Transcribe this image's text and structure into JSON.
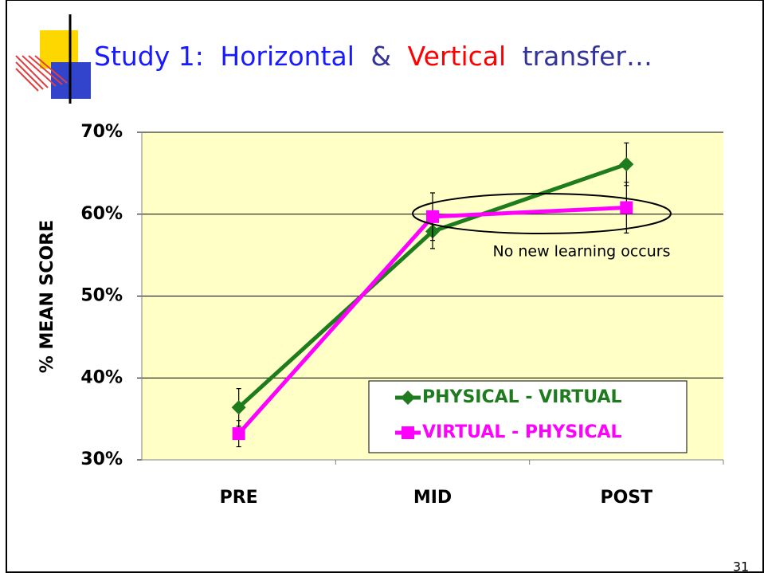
{
  "title_parts": [
    "Study 1:",
    "Horizontal",
    "&",
    "Vertical",
    "transfer…"
  ],
  "page_number": "31",
  "chart_data": {
    "type": "line",
    "y_label": "% MEAN SCORE",
    "categories": [
      "PRE",
      "MID",
      "POST"
    ],
    "series": [
      {
        "name": "PHYSICAL - VIRTUAL",
        "color": "#1e7b1e",
        "marker": "diamond",
        "values": [
          36.4,
          57.9,
          66.1
        ],
        "errors": [
          2.3,
          2.1,
          2.6
        ]
      },
      {
        "name": "VIRTUAL - PHYSICAL",
        "color": "#ff00ff",
        "marker": "square",
        "values": [
          33.2,
          59.7,
          60.8
        ],
        "errors": [
          1.6,
          2.9,
          3.1
        ]
      }
    ],
    "ylim": [
      30,
      70
    ],
    "yticks": [
      {
        "value": 30,
        "label": "30%"
      },
      {
        "value": 40,
        "label": "40%"
      },
      {
        "value": 50,
        "label": "50%"
      },
      {
        "value": 60,
        "label": "60%"
      },
      {
        "value": 70,
        "label": "70%"
      }
    ],
    "grid": true,
    "annotation": "No new learning occurs"
  }
}
